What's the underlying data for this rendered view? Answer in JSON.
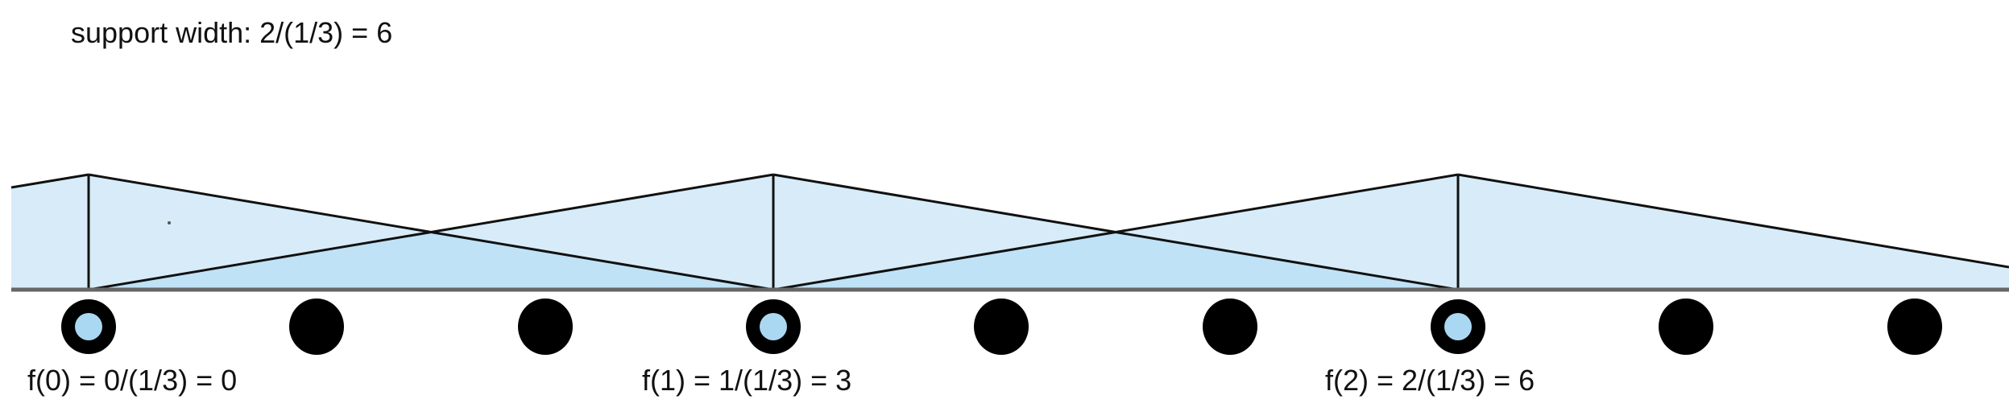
{
  "title": "support width: 2/(1/3) = 6",
  "sample_labels": [
    "f(0) = 0/(1/3) = 0",
    "f(1) = 1/(1/3) = 3",
    "f(2) = 2/(1/3) = 6"
  ],
  "colors": {
    "triangle_fill": "#d7ecf8",
    "overlap_fill": "#bfe2f6",
    "stroke": "#111111",
    "baseline": "#666666",
    "dot": "#000000",
    "dot_center": "#aad8f2"
  },
  "dots": {
    "count": 9,
    "highlighted_positions": [
      0,
      3,
      6
    ]
  }
}
